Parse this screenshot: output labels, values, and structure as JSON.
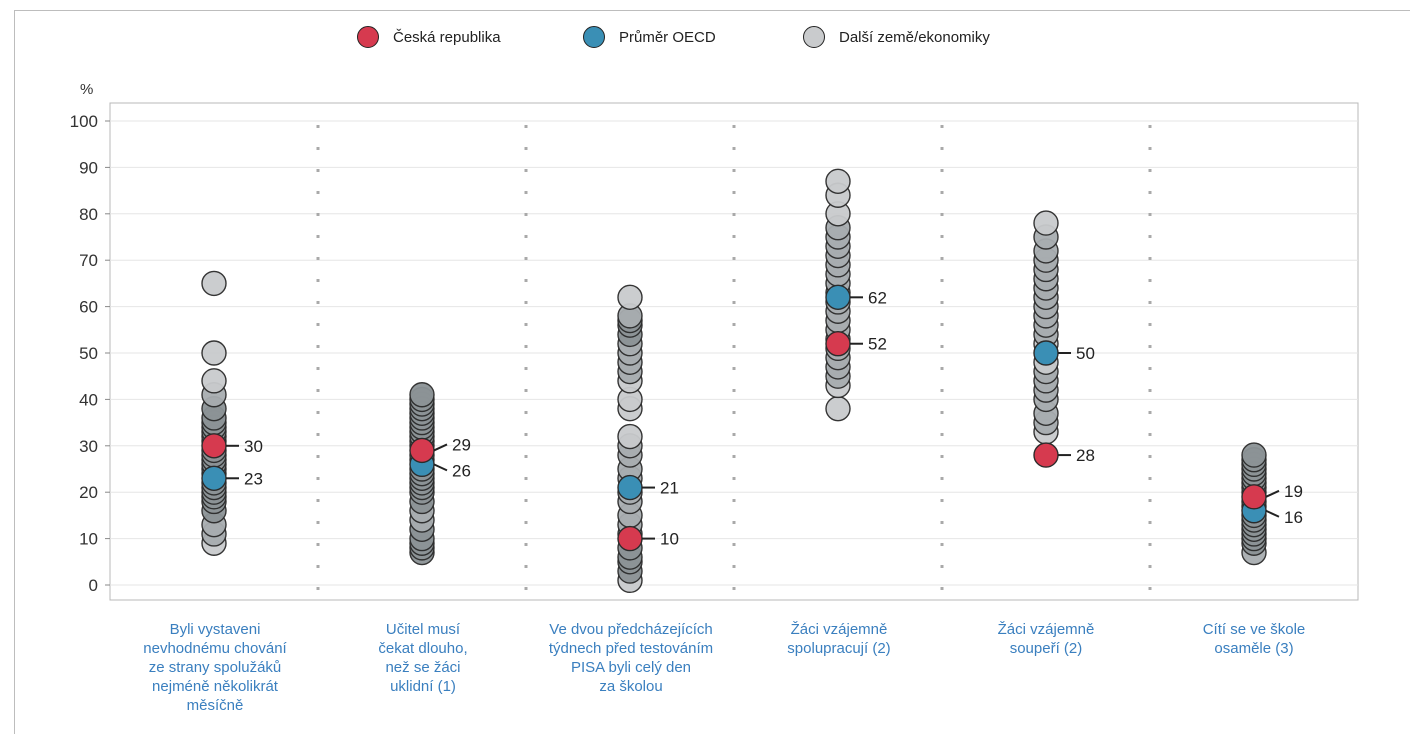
{
  "chart_data": {
    "type": "scatter",
    "ylabel": "%",
    "ylim": [
      0,
      100
    ],
    "yticks": [
      0,
      10,
      20,
      30,
      40,
      50,
      60,
      70,
      80,
      90,
      100
    ],
    "grid": true,
    "legend_position": "top-center",
    "legend": [
      {
        "key": "cz",
        "label": "Česká republika",
        "color": "#d63a4f"
      },
      {
        "key": "oecd",
        "label": "Průměr OECD",
        "color": "#3a8fb5"
      },
      {
        "key": "other",
        "label": "Další země/ekonomiky",
        "color": "#c9cbcd"
      }
    ],
    "categories": [
      "Byli vystaveni\nnevhodnému chování\nze strany spolužáků\nnejméně několikrát\nměsíčně",
      "Učitel musí\nčekat dlouho,\nnež se žáci\nuklidní (1)",
      "Ve dvou předcházejících\ntýdnech před testováním\nPISA byli celý den\nza školou",
      "Žáci vzájemně\nspolupracují (2)",
      "Žáci vzájemně\nsoupeří (2)",
      "Cítí se ve škole\nosaměle (3)"
    ],
    "series": [
      {
        "key": "cz",
        "name": "Česká republika",
        "values": [
          30,
          29,
          10,
          52,
          28,
          19
        ]
      },
      {
        "key": "oecd",
        "name": "Průměr OECD",
        "values": [
          23,
          26,
          21,
          62,
          50,
          16
        ]
      },
      {
        "key": "other",
        "name": "Další země/ekonomiky",
        "values": [
          [
            9,
            11,
            13,
            16,
            18,
            19,
            20,
            21,
            22,
            24,
            25,
            26,
            27,
            28,
            29,
            31,
            32,
            33,
            34,
            35,
            36,
            38,
            41,
            44,
            50,
            65
          ],
          [
            7,
            8,
            9,
            10,
            12,
            14,
            16,
            18,
            20,
            21,
            22,
            23,
            24,
            25,
            27,
            28,
            30,
            31,
            32,
            33,
            34,
            35,
            36,
            37,
            38,
            39,
            40,
            41
          ],
          [
            1,
            3,
            5,
            6,
            8,
            11,
            13,
            15,
            18,
            20,
            23,
            25,
            28,
            30,
            32,
            38,
            40,
            44,
            46,
            48,
            50,
            52,
            54,
            56,
            57,
            58,
            62
          ],
          [
            38,
            43,
            45,
            47,
            49,
            51,
            53,
            55,
            57,
            59,
            61,
            63,
            65,
            67,
            69,
            71,
            73,
            75,
            77,
            80,
            84,
            87
          ],
          [
            33,
            35,
            37,
            40,
            42,
            44,
            46,
            48,
            52,
            54,
            56,
            58,
            60,
            62,
            64,
            66,
            68,
            70,
            72,
            75,
            78
          ],
          [
            7,
            9,
            10,
            11,
            12,
            13,
            14,
            15,
            17,
            18,
            20,
            21,
            22,
            23,
            24,
            25,
            26,
            27,
            28
          ]
        ]
      }
    ]
  }
}
